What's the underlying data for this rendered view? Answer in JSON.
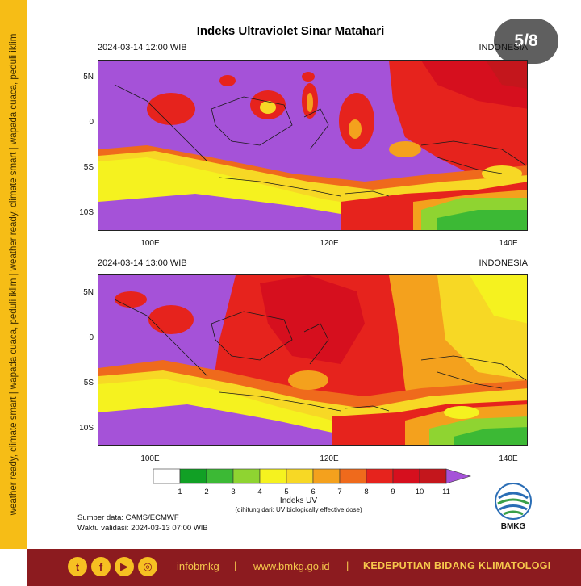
{
  "side_strip": {
    "text": "weather ready, climate smart  |  wapada cuaca, peduli iklim  |  weather ready, climate smart  |  wapada cuaca, peduli iklim"
  },
  "badge": "5/8",
  "title": "Indeks Ultraviolet Sinar Matahari",
  "panels": [
    {
      "datetime": "2024-03-14  12:00 WIB",
      "region": "INDONESIA"
    },
    {
      "datetime": "2024-03-14  13:00 WIB",
      "region": "INDONESIA"
    }
  ],
  "axes": {
    "lat_ticks": [
      "5N",
      "0",
      "5S",
      "10S"
    ],
    "lon_ticks": [
      "100E",
      "120E",
      "140E"
    ]
  },
  "legend": {
    "title": "Indeks UV",
    "note": "(dihitung dari: UV biologically effective dose)",
    "labels": [
      "1",
      "2",
      "3",
      "4",
      "5",
      "6",
      "7",
      "8",
      "9",
      "10",
      "11"
    ],
    "colors": [
      "#ffffff",
      "#11a025",
      "#3cb935",
      "#8fd431",
      "#f5f21f",
      "#f7d825",
      "#f4a11d",
      "#ef6a1c",
      "#e6231d",
      "#d60f1e",
      "#c4161c",
      "#a552d8"
    ]
  },
  "source": {
    "data": "Sumber data: CAMS/ECMWF",
    "validity": "Waktu validasi: 2024-03-13 07:00 WIB"
  },
  "logo_text": "BMKG",
  "footer": {
    "icons": [
      "twitter-icon",
      "facebook-icon",
      "youtube-icon",
      "instagram-icon"
    ],
    "handle": "infobmkg",
    "separator": "|",
    "website": "www.bmkg.go.id",
    "department": "KEDEPUTIAN BIDANG KLIMATOLOGI"
  }
}
